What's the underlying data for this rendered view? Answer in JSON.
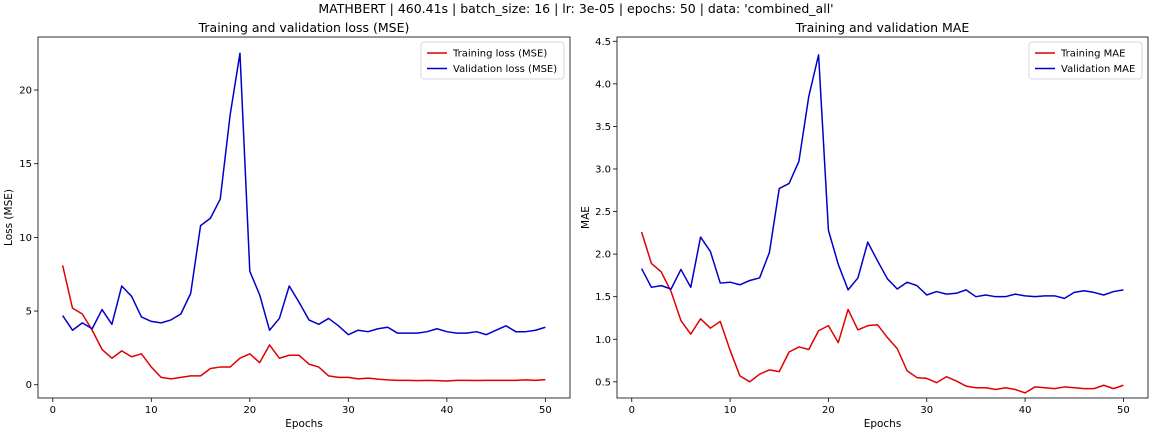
{
  "suptitle": "MATHBERT | 460.41s | batch_size: 16 | lr: 3e-05 | epochs: 50 | data: 'combined_all'",
  "colors": {
    "training": "#e00000",
    "validation": "#0000cc",
    "axis": "#000000"
  },
  "chart_data": [
    {
      "type": "line",
      "title": "Training and validation loss (MSE)",
      "xlabel": "Epochs",
      "ylabel": "Loss (MSE)",
      "xlim": [
        -1.5,
        52.5
      ],
      "ylim": [
        -0.9,
        23.6
      ],
      "xticks": [
        0,
        10,
        20,
        30,
        40,
        50
      ],
      "yticks": [
        0,
        5,
        10,
        15,
        20
      ],
      "ytick_labels": [
        "0",
        "5",
        "10",
        "15",
        "20"
      ],
      "grid": false,
      "legend_position": "top-right",
      "x": [
        1,
        2,
        3,
        4,
        5,
        6,
        7,
        8,
        9,
        10,
        11,
        12,
        13,
        14,
        15,
        16,
        17,
        18,
        19,
        20,
        21,
        22,
        23,
        24,
        25,
        26,
        27,
        28,
        29,
        30,
        31,
        32,
        33,
        34,
        35,
        36,
        37,
        38,
        39,
        40,
        41,
        42,
        43,
        44,
        45,
        46,
        47,
        48,
        49,
        50
      ],
      "series": [
        {
          "name": "Training loss (MSE)",
          "color": "#e00000",
          "values": [
            8.1,
            5.2,
            4.8,
            3.7,
            2.4,
            1.8,
            2.3,
            1.9,
            2.1,
            1.2,
            0.5,
            0.4,
            0.5,
            0.6,
            0.6,
            1.1,
            1.2,
            1.2,
            1.8,
            2.1,
            1.5,
            2.7,
            1.8,
            2.0,
            2.0,
            1.4,
            1.2,
            0.6,
            0.5,
            0.5,
            0.4,
            0.45,
            0.38,
            0.33,
            0.3,
            0.3,
            0.28,
            0.3,
            0.28,
            0.25,
            0.3,
            0.3,
            0.29,
            0.3,
            0.3,
            0.3,
            0.3,
            0.33,
            0.3,
            0.35
          ]
        },
        {
          "name": "Validation loss (MSE)",
          "color": "#0000cc",
          "values": [
            4.7,
            3.7,
            4.2,
            3.8,
            5.1,
            4.1,
            6.7,
            6.0,
            4.6,
            4.3,
            4.2,
            4.4,
            4.8,
            6.2,
            10.8,
            11.3,
            12.6,
            18.3,
            22.5,
            7.7,
            6.1,
            3.7,
            4.5,
            6.7,
            5.6,
            4.4,
            4.1,
            4.5,
            4.0,
            3.4,
            3.7,
            3.6,
            3.8,
            3.9,
            3.5,
            3.5,
            3.5,
            3.6,
            3.8,
            3.6,
            3.5,
            3.5,
            3.6,
            3.4,
            3.7,
            4.0,
            3.6,
            3.6,
            3.7,
            3.9
          ]
        }
      ]
    },
    {
      "type": "line",
      "title": "Training and validation MAE",
      "xlabel": "Epochs",
      "ylabel": "MAE",
      "xlim": [
        -1.5,
        52.5
      ],
      "ylim": [
        0.31,
        4.55
      ],
      "xticks": [
        0,
        10,
        20,
        30,
        40,
        50
      ],
      "yticks": [
        0.5,
        1.0,
        1.5,
        2.0,
        2.5,
        3.0,
        3.5,
        4.0,
        4.5
      ],
      "ytick_labels": [
        "0.5",
        "1.0",
        "1.5",
        "2.0",
        "2.5",
        "3.0",
        "3.5",
        "4.0",
        "4.5"
      ],
      "grid": false,
      "legend_position": "top-right",
      "x": [
        1,
        2,
        3,
        4,
        5,
        6,
        7,
        8,
        9,
        10,
        11,
        12,
        13,
        14,
        15,
        16,
        17,
        18,
        19,
        20,
        21,
        22,
        23,
        24,
        25,
        26,
        27,
        28,
        29,
        30,
        31,
        32,
        33,
        34,
        35,
        36,
        37,
        38,
        39,
        40,
        41,
        42,
        43,
        44,
        45,
        46,
        47,
        48,
        49,
        50
      ],
      "series": [
        {
          "name": "Training MAE",
          "color": "#e00000",
          "values": [
            2.26,
            1.89,
            1.79,
            1.56,
            1.22,
            1.06,
            1.24,
            1.13,
            1.21,
            0.87,
            0.57,
            0.5,
            0.59,
            0.64,
            0.62,
            0.85,
            0.91,
            0.88,
            1.1,
            1.16,
            0.96,
            1.35,
            1.11,
            1.16,
            1.17,
            1.02,
            0.89,
            0.63,
            0.55,
            0.54,
            0.49,
            0.56,
            0.51,
            0.45,
            0.43,
            0.43,
            0.41,
            0.43,
            0.41,
            0.37,
            0.44,
            0.43,
            0.42,
            0.44,
            0.43,
            0.42,
            0.42,
            0.46,
            0.42,
            0.46
          ]
        },
        {
          "name": "Validation MAE",
          "color": "#0000cc",
          "values": [
            1.83,
            1.61,
            1.63,
            1.59,
            1.82,
            1.61,
            2.2,
            2.03,
            1.66,
            1.67,
            1.64,
            1.69,
            1.72,
            2.02,
            2.77,
            2.83,
            3.09,
            3.85,
            4.34,
            2.28,
            1.88,
            1.58,
            1.72,
            2.14,
            1.92,
            1.71,
            1.59,
            1.67,
            1.63,
            1.52,
            1.56,
            1.53,
            1.54,
            1.58,
            1.5,
            1.52,
            1.5,
            1.5,
            1.53,
            1.51,
            1.5,
            1.51,
            1.51,
            1.48,
            1.55,
            1.57,
            1.55,
            1.52,
            1.56,
            1.58
          ]
        }
      ]
    }
  ]
}
